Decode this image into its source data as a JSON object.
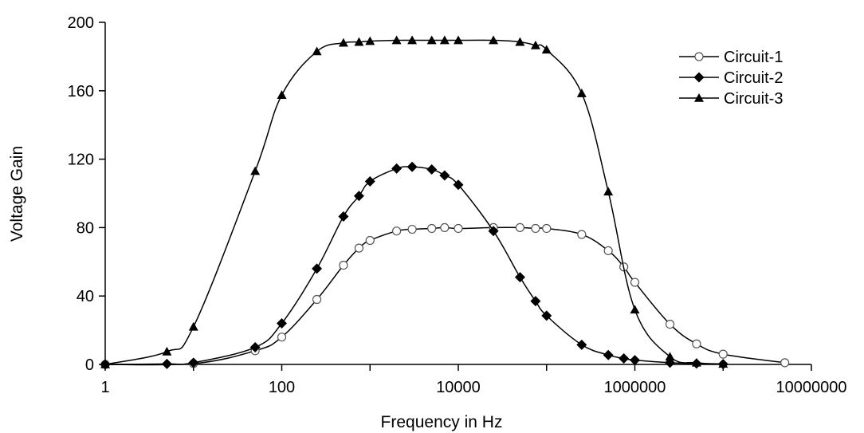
{
  "chart_data": {
    "type": "line",
    "title": "",
    "xlabel": "Frequency in Hz",
    "ylabel": "Voltage Gain",
    "xscale": "log",
    "xlim": [
      1,
      10000000
    ],
    "ylim": [
      0,
      200
    ],
    "xticks": [
      1,
      100,
      10000,
      1000000,
      10000000
    ],
    "xtick_labels": [
      "1",
      "100",
      "10000",
      "1000000",
      "10000000"
    ],
    "yticks": [
      0,
      40,
      80,
      120,
      160,
      200
    ],
    "ytick_labels": [
      "0",
      "40",
      "80",
      "120",
      "160",
      "200"
    ],
    "grid": false,
    "legend_position": "top-right",
    "series": [
      {
        "name": "Circuit-1",
        "marker": "open-circle",
        "points": [
          [
            1,
            0
          ],
          [
            10,
            0.5
          ],
          [
            50,
            8
          ],
          [
            100,
            16
          ],
          [
            250,
            38
          ],
          [
            500,
            58
          ],
          [
            750,
            68
          ],
          [
            1000,
            72.5
          ],
          [
            2000,
            78
          ],
          [
            3000,
            79
          ],
          [
            5000,
            79.5
          ],
          [
            7000,
            80
          ],
          [
            10000,
            79.5
          ],
          [
            25000,
            80
          ],
          [
            50000,
            80
          ],
          [
            75000,
            79.5
          ],
          [
            100000,
            79.5
          ],
          [
            250000,
            76
          ],
          [
            500000,
            66.5
          ],
          [
            750000,
            57
          ],
          [
            1000000,
            48
          ],
          [
            2500000,
            23.5
          ],
          [
            5000000,
            12
          ],
          [
            10000000,
            6
          ],
          [
            50000000,
            1
          ]
        ]
      },
      {
        "name": "Circuit-2",
        "marker": "filled-diamond",
        "points": [
          [
            1,
            0
          ],
          [
            5,
            0.3
          ],
          [
            10,
            1
          ],
          [
            50,
            10
          ],
          [
            100,
            24
          ],
          [
            250,
            56
          ],
          [
            500,
            86.5
          ],
          [
            750,
            98.5
          ],
          [
            1000,
            107
          ],
          [
            2000,
            114.5
          ],
          [
            3000,
            115.5
          ],
          [
            5000,
            114
          ],
          [
            7000,
            110.5
          ],
          [
            10000,
            105
          ],
          [
            25000,
            78
          ],
          [
            50000,
            51
          ],
          [
            75000,
            37
          ],
          [
            100000,
            28.5
          ],
          [
            250000,
            11.5
          ],
          [
            500000,
            5.5
          ],
          [
            750000,
            3.5
          ],
          [
            1000000,
            2.5
          ],
          [
            2500000,
            1
          ],
          [
            5000000,
            0.5
          ],
          [
            10000000,
            0.2
          ]
        ]
      },
      {
        "name": "Circuit-3",
        "marker": "filled-triangle",
        "points": [
          [
            1,
            0
          ],
          [
            5,
            7.5
          ],
          [
            10,
            22
          ],
          [
            50,
            113
          ],
          [
            100,
            157.5
          ],
          [
            250,
            183
          ],
          [
            500,
            188
          ],
          [
            750,
            188.5
          ],
          [
            1000,
            189
          ],
          [
            2000,
            189.5
          ],
          [
            3000,
            189.5
          ],
          [
            5000,
            189.5
          ],
          [
            7000,
            189.5
          ],
          [
            10000,
            189.5
          ],
          [
            25000,
            189.5
          ],
          [
            50000,
            188.5
          ],
          [
            75000,
            186.5
          ],
          [
            100000,
            184
          ],
          [
            250000,
            158.5
          ],
          [
            500000,
            101
          ],
          [
            1000000,
            32
          ],
          [
            2500000,
            4.5
          ],
          [
            5000000,
            1
          ],
          [
            10000000,
            0.3
          ]
        ]
      }
    ]
  }
}
